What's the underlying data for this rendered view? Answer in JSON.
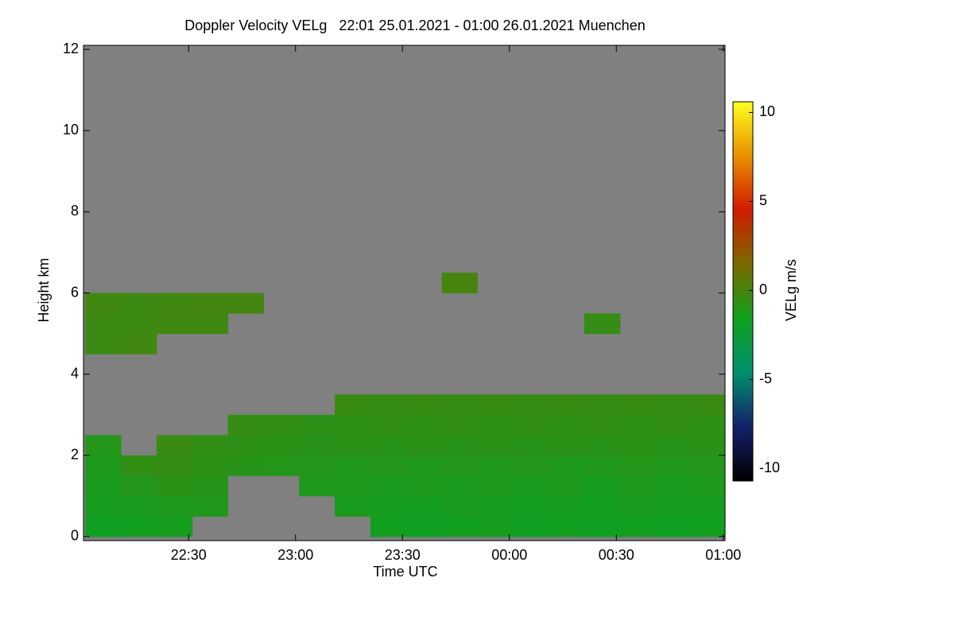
{
  "chart_data": {
    "type": "heatmap",
    "title": "Doppler Velocity VELg   22:01 25.01.2021 - 01:00 26.01.2021 Muenchen",
    "x_label": "Time UTC",
    "y_label": "Height km",
    "colorbar_label": "VELg m/s",
    "background": "#808080",
    "x": [
      6,
      16,
      26,
      36,
      46,
      56,
      66,
      76,
      86,
      96,
      106,
      116,
      126,
      136,
      146,
      156,
      166,
      176
    ],
    "y": [
      0.25,
      0.75,
      1.25,
      1.75,
      2.25,
      2.75,
      3.25,
      3.75,
      4.25,
      4.75,
      5.25,
      5.75,
      6.25,
      6.75,
      7.25,
      7.75,
      8.25,
      8.75,
      9.25,
      9.75,
      10.25,
      10.75,
      11.25,
      11.75
    ],
    "z": [
      [
        -1.6,
        -1.5,
        -1.4,
        null,
        null,
        null,
        null,
        null,
        -1.5,
        -1.6,
        -1.5,
        -1.4,
        -1.6,
        -1.5,
        -1.7,
        -1.5,
        -1.6,
        -1.5
      ],
      [
        -1.4,
        -1.3,
        -1.2,
        -1.1,
        null,
        null,
        null,
        -1.3,
        -1.4,
        -1.5,
        -1.3,
        -1.4,
        -1.5,
        -1.4,
        -1.5,
        -1.3,
        -1.4,
        -1.4
      ],
      [
        -1.3,
        -1.0,
        -0.8,
        -0.9,
        null,
        null,
        -1.1,
        -1.2,
        -1.3,
        -1.2,
        -1.3,
        -1.2,
        -1.3,
        -1.2,
        -1.4,
        -1.2,
        -1.3,
        -1.2
      ],
      [
        -1.2,
        -0.6,
        -0.5,
        -0.7,
        -0.9,
        -1.0,
        -1.0,
        -1.1,
        -1.0,
        -1.1,
        -1.0,
        -1.1,
        -1.0,
        -1.2,
        -1.1,
        -1.0,
        -1.1,
        -1.0
      ],
      [
        -1.0,
        null,
        -0.4,
        -0.6,
        -0.7,
        -0.8,
        -0.9,
        -0.8,
        -0.9,
        -0.8,
        -0.9,
        -0.8,
        -0.9,
        -0.8,
        -0.9,
        -0.8,
        -0.9,
        -0.8
      ],
      [
        null,
        null,
        null,
        null,
        -0.5,
        -0.6,
        -0.7,
        -0.7,
        -0.6,
        -0.7,
        -0.6,
        -0.7,
        -0.6,
        -0.7,
        -0.6,
        -0.7,
        -0.6,
        -0.7
      ],
      [
        null,
        null,
        null,
        null,
        null,
        null,
        null,
        -0.4,
        -0.5,
        -0.4,
        -0.5,
        -0.4,
        -0.5,
        -0.4,
        -0.5,
        -0.4,
        -0.5,
        -0.4
      ],
      [
        null,
        null,
        null,
        null,
        null,
        null,
        null,
        null,
        null,
        null,
        null,
        null,
        null,
        null,
        null,
        null,
        null,
        null
      ],
      [
        null,
        null,
        null,
        null,
        null,
        null,
        null,
        null,
        null,
        null,
        null,
        null,
        null,
        null,
        null,
        null,
        null,
        null
      ],
      [
        -0.3,
        -0.2,
        null,
        null,
        null,
        null,
        null,
        null,
        null,
        null,
        null,
        null,
        null,
        null,
        null,
        null,
        null,
        null
      ],
      [
        -0.3,
        -0.3,
        -0.2,
        -0.2,
        null,
        null,
        null,
        null,
        null,
        null,
        null,
        null,
        null,
        null,
        -0.5,
        null,
        null,
        null
      ],
      [
        -0.2,
        -0.3,
        -0.2,
        -0.1,
        -0.1,
        null,
        null,
        null,
        null,
        null,
        null,
        null,
        null,
        null,
        null,
        null,
        null,
        null
      ],
      [
        null,
        null,
        null,
        null,
        null,
        null,
        null,
        null,
        null,
        null,
        0,
        null,
        null,
        null,
        null,
        null,
        null,
        null
      ],
      [
        null,
        null,
        null,
        null,
        null,
        null,
        null,
        null,
        null,
        null,
        null,
        null,
        null,
        null,
        null,
        null,
        null,
        null
      ],
      [
        null,
        null,
        null,
        null,
        null,
        null,
        null,
        null,
        null,
        null,
        null,
        null,
        null,
        null,
        null,
        null,
        null,
        null
      ],
      [
        null,
        null,
        null,
        null,
        null,
        null,
        null,
        null,
        null,
        null,
        null,
        null,
        null,
        null,
        null,
        null,
        null,
        null
      ],
      [
        null,
        null,
        null,
        null,
        null,
        null,
        null,
        null,
        null,
        null,
        null,
        null,
        null,
        null,
        null,
        null,
        null,
        null
      ],
      [
        null,
        null,
        null,
        null,
        null,
        null,
        null,
        null,
        null,
        null,
        null,
        null,
        null,
        null,
        null,
        null,
        null,
        null
      ],
      [
        null,
        null,
        null,
        null,
        null,
        null,
        null,
        null,
        null,
        null,
        null,
        null,
        null,
        null,
        null,
        null,
        null,
        null
      ],
      [
        null,
        null,
        null,
        null,
        null,
        null,
        null,
        null,
        null,
        null,
        null,
        null,
        null,
        null,
        null,
        null,
        null,
        null
      ],
      [
        null,
        null,
        null,
        null,
        null,
        null,
        null,
        null,
        null,
        null,
        null,
        null,
        null,
        null,
        null,
        null,
        null,
        null
      ],
      [
        null,
        null,
        null,
        null,
        null,
        null,
        null,
        null,
        null,
        null,
        null,
        null,
        null,
        null,
        null,
        null,
        null,
        null
      ],
      [
        null,
        null,
        null,
        null,
        null,
        null,
        null,
        null,
        null,
        null,
        null,
        null,
        null,
        null,
        null,
        null,
        null,
        null
      ],
      [
        null,
        null,
        null,
        null,
        null,
        null,
        null,
        null,
        null,
        null,
        null,
        null,
        null,
        null,
        null,
        null,
        null,
        null
      ]
    ],
    "xlim": [
      0.5,
      180.5
    ],
    "xticks": [
      {
        "value": 30,
        "label": "22:30"
      },
      {
        "value": 60,
        "label": "23:00"
      },
      {
        "value": 90,
        "label": "23:30"
      },
      {
        "value": 120,
        "label": "00:00"
      },
      {
        "value": 150,
        "label": "00:30"
      },
      {
        "value": 180,
        "label": "01:00"
      }
    ],
    "ylim": [
      -0.1,
      12.1
    ],
    "yticks": [
      0,
      2,
      4,
      6,
      8,
      10,
      12
    ],
    "zlim": [
      -10.7,
      10.6
    ],
    "zticks": [
      -10,
      -5,
      0,
      5,
      10
    ],
    "colorscale": [
      "#000000",
      "#14206a",
      "#00906e",
      "#10a020",
      "#7a6a00",
      "#d01a00",
      "#e89000",
      "#ffff20"
    ]
  }
}
